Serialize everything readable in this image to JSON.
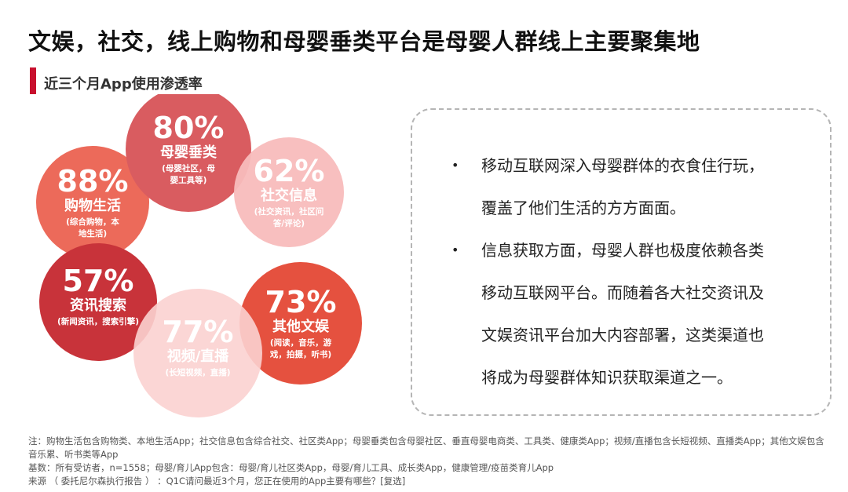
{
  "header": {
    "title": "文娱，社交，线上购物和母婴垂类平台是母婴人群线上主要聚集地",
    "subtitle": "近三个月App使用渗透率"
  },
  "colors": {
    "accent": "#c8102e",
    "bubble_shopping": "#ec6a5a",
    "bubble_maternal": "#d95c60",
    "bubble_social": "#f8bcbc",
    "bubble_news": "#c8333a",
    "bubble_video": "#fbd2d0",
    "bubble_entertainment": "#e5513f"
  },
  "chart_data": {
    "type": "bubble",
    "unit": "%",
    "items": [
      {
        "value": 88,
        "label": "88%",
        "category": "购物生活",
        "note_lines": [
          "(综合购物，本",
          "地生活)"
        ]
      },
      {
        "value": 80,
        "label": "80%",
        "category": "母婴垂类",
        "note_lines": [
          "(母婴社区，母",
          "婴工具等)"
        ]
      },
      {
        "value": 62,
        "label": "62%",
        "category": "社交信息",
        "note_lines": [
          "(社交资讯，社区问",
          "答/评论)"
        ]
      },
      {
        "value": 57,
        "label": "57%",
        "category": "资讯搜索",
        "note_lines": [
          "(新闻资讯，搜索引擎)"
        ]
      },
      {
        "value": 77,
        "label": "77%",
        "category": "视频/直播",
        "note_lines": [
          "(长短视频，直播)"
        ]
      },
      {
        "value": 73,
        "label": "73%",
        "category": "其他文娱",
        "note_lines": [
          "(阅读，音乐，游",
          "戏，拍摄，听书)"
        ]
      }
    ]
  },
  "insights": [
    {
      "lines": [
        "移动互联网深入母婴群体的衣食住行玩，",
        "覆盖了他们生活的方方面面。"
      ]
    },
    {
      "lines": [
        "信息获取方面，母婴人群也极度依赖各类",
        "移动互联网平台。而随着各大社交资讯及",
        "文娱资讯平台加大内容部署，这类渠道也",
        "将成为母婴群体知识获取渠道之一。"
      ]
    }
  ],
  "footnotes": {
    "note": "注：购物生活包含购物类、本地生活App；社交信息包含综合社交、社区类App；母婴垂类包含母婴社区、垂直母婴电商类、工具类、健康类App；视频/直播包含长短视频、直播类App；其他文娱包含音乐累、听书类等App",
    "base": "基数：所有受访者，n=1558；母婴/育儿App包含：母婴/育儿社区类App，母婴/育儿工具、成长类App，健康管理/疫苗类育儿App",
    "source": "来源 （ 委托尼尔森执行报告 ） ：Q1C请问最近3个月，您正在使用的App主要有哪些？[复选]"
  }
}
